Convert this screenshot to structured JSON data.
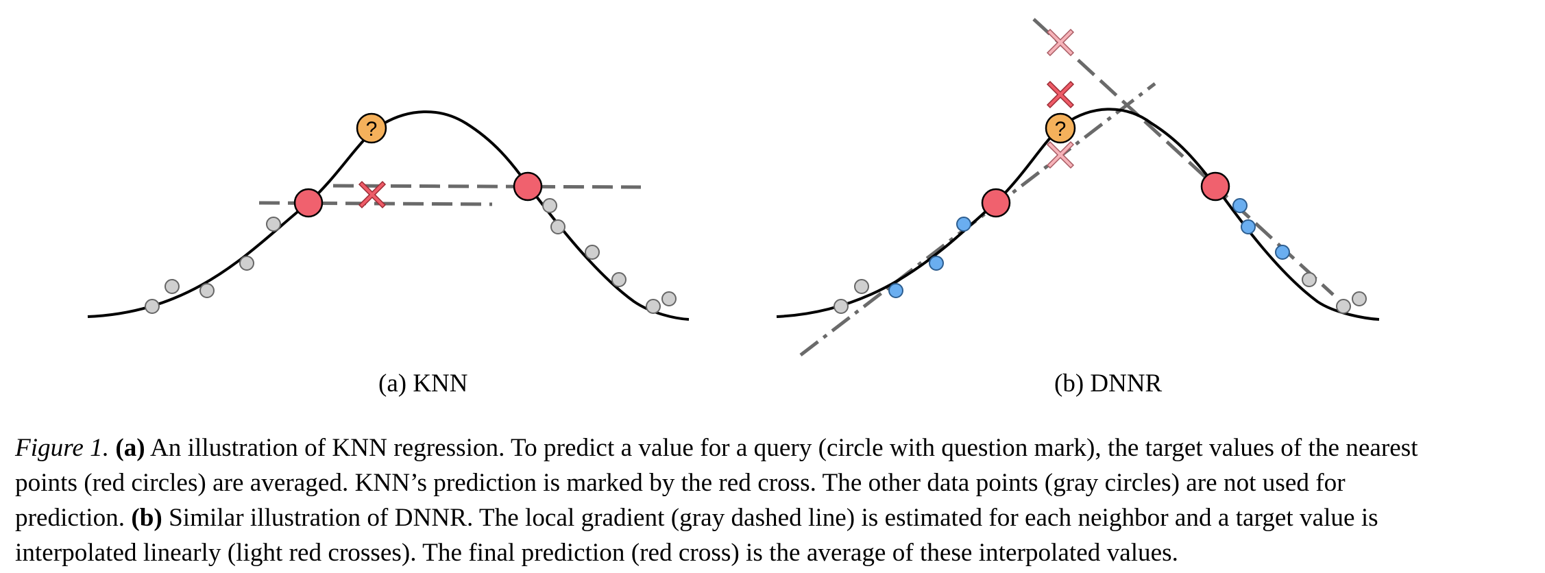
{
  "figure": {
    "panels": [
      {
        "id": "a",
        "label": "(a) KNN"
      },
      {
        "id": "b",
        "label": "(b) DNNR"
      }
    ],
    "query_symbol": "?",
    "colors": {
      "curve": "#000000",
      "neighbor": "#f0616e",
      "query": "#f5b15b",
      "data_point": "#cfcfcf",
      "gradient_point": "#6aaef0",
      "prediction_cross": "#ee5c68",
      "interpolated_cross": "#f6b3b9",
      "gradient_line": "#6a6a6a"
    }
  },
  "caption": {
    "figure_ref": "Figure 1.",
    "part_a_tag": "(a)",
    "part_a_text_1": " An illustration of KNN regression. To predict a value for a query (circle with question mark), the target values of the nearest",
    "part_a_text_2": "points (red circles) are averaged. KNN’s prediction is marked by the red cross. The other data points (gray circles) are not used for",
    "part_a_text_3": "prediction. ",
    "part_b_tag": "(b)",
    "part_b_text_1": " Similar illustration of DNNR. The local gradient (gray dashed line) is estimated for each neighbor and a target value is",
    "part_b_text_2": "interpolated linearly (light red crosses). The final prediction (red cross) is the average of these interpolated values."
  }
}
